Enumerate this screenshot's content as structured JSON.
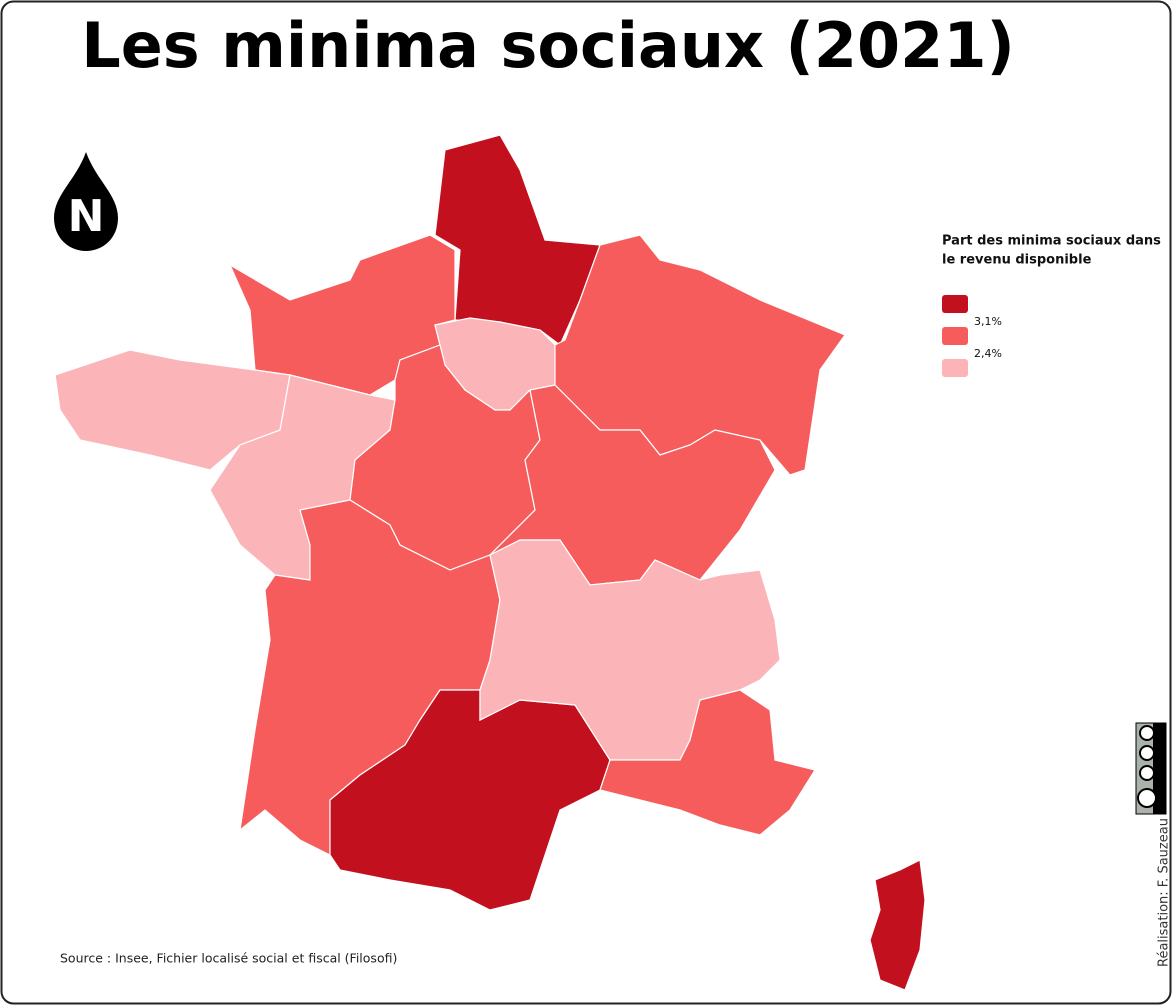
{
  "title": "Les minima sociaux (2021)",
  "north_arrow": "N",
  "legend": {
    "title_lines": [
      "Part des minima sociaux dans",
      "le revenu disponible"
    ],
    "classes": [
      {
        "color": "#c2101f"
      },
      {
        "color": "#f75c5d"
      },
      {
        "color": "#fbb4b8"
      }
    ],
    "breaks": [
      "3,1%",
      "2,4%"
    ]
  },
  "source": "Source : Insee, Fichier localisé social et fiscal (Filosofi)",
  "credit": "Réalisation: F. Sauzeau"
}
